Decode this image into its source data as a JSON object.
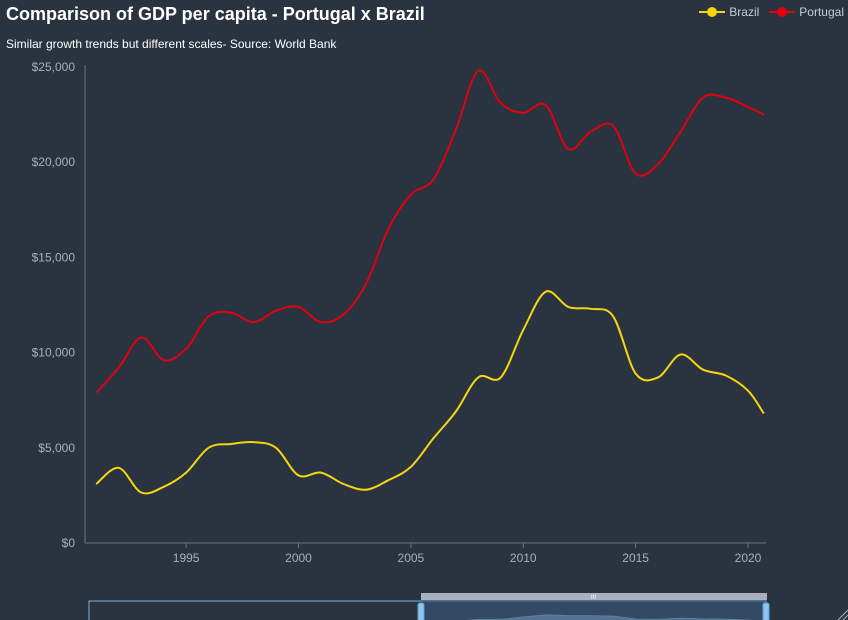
{
  "chart_data": {
    "type": "line",
    "title": "Comparison of GDP per capita - Portugal x Brazil",
    "subtitle": "Similar growth trends but different scales- Source: World Bank",
    "ylim": [
      0,
      25000
    ],
    "xlim": [
      1990.5,
      2020.8
    ],
    "y_ticks": [
      0,
      5000,
      10000,
      15000,
      20000,
      25000
    ],
    "y_tick_labels": [
      "$0",
      "$5,000",
      "$10,000",
      "$15,000",
      "$20,000",
      "$25,000"
    ],
    "x_ticks": [
      1995,
      2000,
      2005,
      2010,
      2015,
      2020
    ],
    "x_tick_labels": [
      "1995",
      "2000",
      "2005",
      "2010",
      "2015",
      "2020"
    ],
    "legend_position": "top-right",
    "series": [
      {
        "name": "Brazil",
        "color": "#f5d60f",
        "x": [
          1991,
          1992,
          1993,
          1994,
          1995,
          1996,
          1997,
          1998,
          1999,
          2000,
          2001,
          2002,
          2003,
          2004,
          2005,
          2006,
          2007,
          2008,
          2009,
          2010,
          2011,
          2012,
          2013,
          2014,
          2015,
          2016,
          2017,
          2018,
          2019,
          2020,
          2020.7
        ],
        "values": [
          3100,
          3950,
          2650,
          2950,
          3700,
          5000,
          5200,
          5300,
          5000,
          3550,
          3700,
          3100,
          2800,
          3300,
          4000,
          5500,
          6900,
          8700,
          8700,
          11200,
          13200,
          12400,
          12300,
          11900,
          8900,
          8700,
          9900,
          9100,
          8800,
          8000,
          6800
        ]
      },
      {
        "name": "Portugal",
        "color": "#e3000f",
        "x": [
          1991,
          1992,
          1993,
          1994,
          1995,
          1996,
          1997,
          1998,
          1999,
          2000,
          2001,
          2002,
          2003,
          2004,
          2005,
          2006,
          2007,
          2008,
          2009,
          2010,
          2011,
          2012,
          2013,
          2014,
          2015,
          2016,
          2017,
          2018,
          2019,
          2020,
          2020.7
        ],
        "values": [
          7900,
          9200,
          10800,
          9600,
          10200,
          11900,
          12100,
          11600,
          12200,
          12400,
          11600,
          12000,
          13600,
          16500,
          18300,
          19100,
          21700,
          24800,
          23100,
          22600,
          23000,
          20700,
          21600,
          21900,
          19400,
          19900,
          21600,
          23400,
          23400,
          22900,
          22500
        ]
      }
    ]
  },
  "navigator": {
    "handle_label": "III"
  }
}
